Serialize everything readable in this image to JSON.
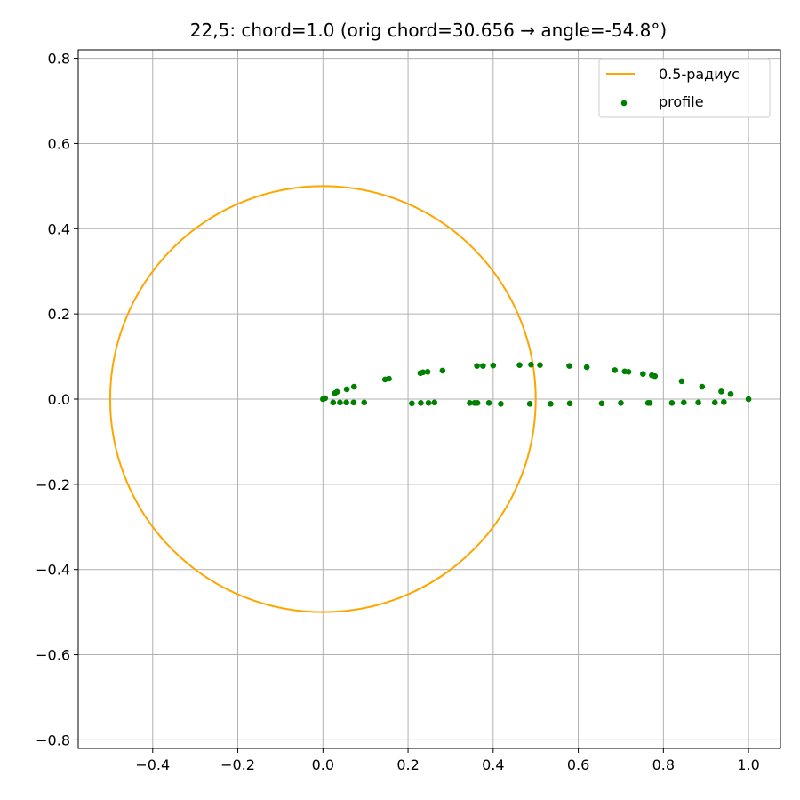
{
  "chart_data": {
    "type": "scatter",
    "title": "22,5: chord=1.0  (orig chord=30.656 → angle=-54.8°)",
    "xlabel": "",
    "ylabel": "",
    "xlim": [
      -0.575,
      1.075
    ],
    "ylim": [
      -0.82,
      0.82
    ],
    "xticks": [
      -0.4,
      -0.2,
      0.0,
      0.2,
      0.4,
      0.6,
      0.8,
      1.0
    ],
    "xtick_labels": [
      "−0.4",
      "−0.2",
      "0.0",
      "0.2",
      "0.4",
      "0.6",
      "0.8",
      "1.0"
    ],
    "yticks": [
      -0.8,
      -0.6,
      -0.4,
      -0.2,
      0.0,
      0.2,
      0.4,
      0.6,
      0.8
    ],
    "ytick_labels": [
      "−0.8",
      "−0.6",
      "−0.4",
      "−0.2",
      "0.0",
      "0.2",
      "0.4",
      "0.6",
      "0.8"
    ],
    "grid": true,
    "legend_position": "top-right",
    "series": [
      {
        "name": "0.5-радиус",
        "kind": "line",
        "shape": "circle",
        "center": [
          0,
          0
        ],
        "radius": 0.5,
        "color": "#FFA500"
      },
      {
        "name": "profile",
        "kind": "scatter",
        "color": "#008000",
        "points": [
          [
            0.0,
            0.0
          ],
          [
            0.005,
            0.002
          ],
          [
            0.028,
            0.014
          ],
          [
            0.033,
            0.017
          ],
          [
            0.056,
            0.023
          ],
          [
            0.073,
            0.029
          ],
          [
            0.146,
            0.046
          ],
          [
            0.155,
            0.048
          ],
          [
            0.229,
            0.061
          ],
          [
            0.235,
            0.063
          ],
          [
            0.246,
            0.064
          ],
          [
            0.281,
            0.067
          ],
          [
            0.362,
            0.078
          ],
          [
            0.376,
            0.078
          ],
          [
            0.4,
            0.079
          ],
          [
            0.462,
            0.08
          ],
          [
            0.489,
            0.081
          ],
          [
            0.51,
            0.08
          ],
          [
            0.579,
            0.078
          ],
          [
            0.62,
            0.075
          ],
          [
            0.686,
            0.068
          ],
          [
            0.709,
            0.065
          ],
          [
            0.718,
            0.064
          ],
          [
            0.752,
            0.059
          ],
          [
            0.773,
            0.056
          ],
          [
            0.78,
            0.054
          ],
          [
            0.843,
            0.042
          ],
          [
            0.891,
            0.029
          ],
          [
            0.936,
            0.018
          ],
          [
            0.958,
            0.012
          ],
          [
            1.0,
            0.0
          ],
          [
            0.024,
            -0.008
          ],
          [
            0.04,
            -0.008
          ],
          [
            0.055,
            -0.008
          ],
          [
            0.072,
            -0.008
          ],
          [
            0.097,
            -0.008
          ],
          [
            0.209,
            -0.01
          ],
          [
            0.23,
            -0.009
          ],
          [
            0.248,
            -0.009
          ],
          [
            0.262,
            -0.008
          ],
          [
            0.345,
            -0.009
          ],
          [
            0.356,
            -0.009
          ],
          [
            0.363,
            -0.009
          ],
          [
            0.39,
            -0.009
          ],
          [
            0.418,
            -0.011
          ],
          [
            0.486,
            -0.011
          ],
          [
            0.535,
            -0.011
          ],
          [
            0.58,
            -0.01
          ],
          [
            0.655,
            -0.01
          ],
          [
            0.7,
            -0.009
          ],
          [
            0.764,
            -0.009
          ],
          [
            0.768,
            -0.009
          ],
          [
            0.82,
            -0.009
          ],
          [
            0.848,
            -0.008
          ],
          [
            0.882,
            -0.008
          ],
          [
            0.921,
            -0.008
          ],
          [
            0.942,
            -0.007
          ]
        ]
      }
    ]
  }
}
